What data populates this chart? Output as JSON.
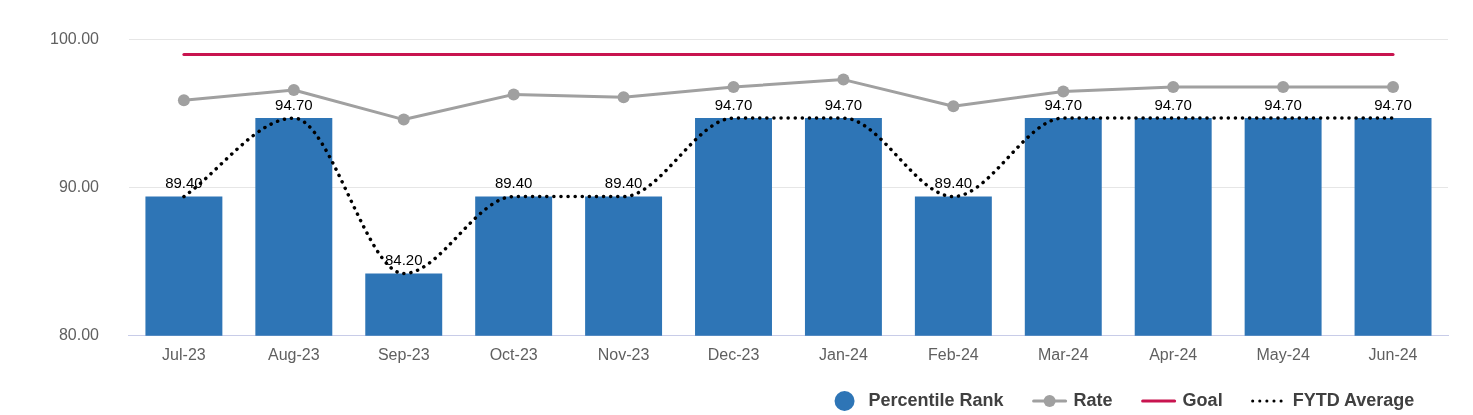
{
  "chart_data": {
    "type": "bar",
    "categories": [
      "Jul-23",
      "Aug-23",
      "Sep-23",
      "Oct-23",
      "Nov-23",
      "Dec-23",
      "Jan-24",
      "Feb-24",
      "Mar-24",
      "Apr-24",
      "May-24",
      "Jun-24"
    ],
    "series": [
      {
        "name": "Percentile Rank",
        "color": "#2e75b6",
        "values": [
          89.4,
          94.7,
          84.2,
          89.4,
          89.4,
          94.7,
          94.7,
          89.4,
          94.7,
          94.7,
          94.7,
          94.7
        ],
        "value_labels": [
          "89.40",
          "94.70",
          "84.20",
          "89.40",
          "89.40",
          "94.70",
          "94.70",
          "89.40",
          "94.70",
          "94.70",
          "94.70",
          "94.70"
        ]
      },
      {
        "name": "Rate",
        "type": "line",
        "color": "#a0a0a0",
        "marker": "circle",
        "line_style": "solid",
        "values": [
          95.9,
          96.6,
          94.6,
          96.3,
          96.1,
          96.8,
          97.3,
          95.5,
          96.5,
          96.8,
          96.8,
          96.8
        ]
      },
      {
        "name": "Goal",
        "type": "line",
        "color": "#c8144f",
        "marker": "none",
        "line_style": "solid",
        "values": [
          99,
          99,
          99,
          99,
          99,
          99,
          99,
          99,
          99,
          99,
          99,
          99
        ]
      },
      {
        "name": "FYTD Average",
        "type": "line",
        "color": "#000000",
        "marker": "none",
        "line_style": "dotted",
        "values": [
          89.4,
          94.7,
          84.2,
          89.4,
          89.4,
          94.7,
          94.7,
          89.4,
          94.7,
          94.7,
          94.7,
          94.7
        ]
      }
    ],
    "ylim": [
      80,
      100
    ],
    "yticks": [
      {
        "value": 80,
        "label": "80.00"
      },
      {
        "value": 90,
        "label": "90.00"
      },
      {
        "value": 100,
        "label": "100.00"
      }
    ],
    "grid": "y",
    "legend": "bottom right"
  }
}
